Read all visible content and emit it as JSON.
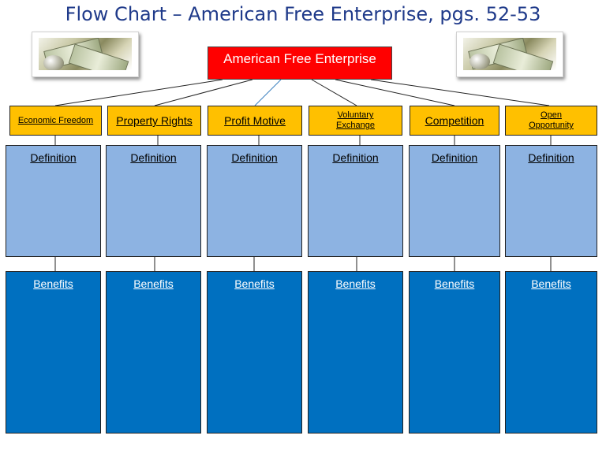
{
  "title": "Flow Chart – American Free Enterprise, pgs. 52-53",
  "root": "American Free Enterprise",
  "categories": [
    {
      "label": "Economic Freedom",
      "definition": "Definition",
      "benefits": "Benefits"
    },
    {
      "label": "Property Rights",
      "definition": "Definition",
      "benefits": "Benefits"
    },
    {
      "label": "Profit Motive",
      "definition": "Definition",
      "benefits": "Benefits"
    },
    {
      "label": "Voluntary Exchange",
      "definition": "Definition",
      "benefits": "Benefits"
    },
    {
      "label": "Competition",
      "definition": "Definition",
      "benefits": "Benefits"
    },
    {
      "label": "Open Opportunity",
      "definition": "Definition",
      "benefits": "Benefits"
    }
  ],
  "colors": {
    "title": "#1f3a8a",
    "root": "#ff0000",
    "category": "#ffc000",
    "definition": "#8db3e2",
    "benefits": "#0070c0"
  },
  "icons": {
    "left_photo": "money-photo-icon",
    "right_photo": "money-photo-icon"
  }
}
